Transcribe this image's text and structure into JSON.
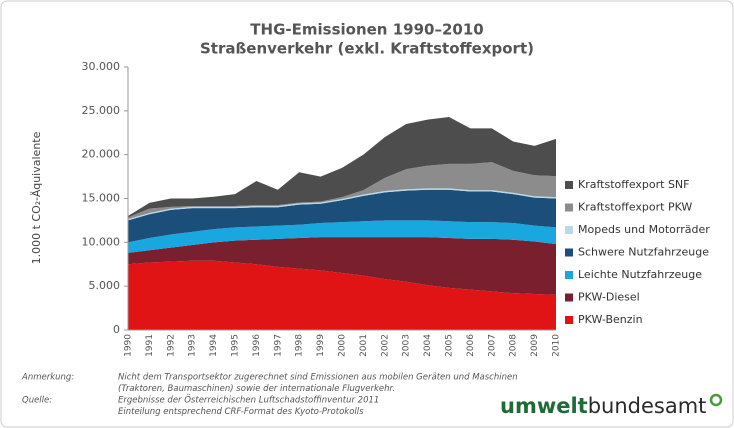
{
  "chart_data": {
    "type": "stacked_area",
    "title": [
      "THG-Emissionen 1990–2010",
      "Straßenverkehr (exkl. Kraftstoffexport)"
    ],
    "y_label": "1.000 t CO₂-Äquivalente",
    "categories": [
      "1990",
      "1991",
      "1992",
      "1993",
      "1994",
      "1995",
      "1996",
      "1997",
      "1998",
      "1999",
      "2000",
      "2001",
      "2002",
      "2003",
      "2004",
      "2005",
      "2006",
      "2007",
      "2008",
      "2009",
      "2010"
    ],
    "ylim": [
      0,
      30000
    ],
    "yticks": [
      0,
      {
        "value": 5000,
        "label": "5.000"
      },
      {
        "value": 10000,
        "label": "10.000"
      },
      {
        "value": 15000,
        "label": "15.000"
      },
      {
        "value": 20000,
        "label": "20.000"
      },
      {
        "value": 25000,
        "label": "25.000"
      },
      {
        "value": 30000,
        "label": "30.000"
      }
    ],
    "grid": false,
    "series": [
      {
        "name": "PKW-Benzin",
        "color": "#e01414",
        "values": [
          7500,
          7700,
          7800,
          7900,
          7900,
          7700,
          7500,
          7200,
          7000,
          6800,
          6500,
          6200,
          5800,
          5500,
          5100,
          4800,
          4600,
          4400,
          4200,
          4100,
          4000
        ]
      },
      {
        "name": "PKW-Diesel",
        "color": "#7a1f2e",
        "values": [
          1300,
          1400,
          1600,
          1800,
          2100,
          2500,
          2800,
          3200,
          3500,
          3800,
          4100,
          4400,
          4800,
          5100,
          5500,
          5700,
          5800,
          6000,
          6100,
          6000,
          5800
        ]
      },
      {
        "name": "Leichte Nutzfahrzeuge",
        "color": "#19a7e0",
        "values": [
          1200,
          1400,
          1500,
          1500,
          1500,
          1500,
          1500,
          1500,
          1500,
          1600,
          1700,
          1800,
          1900,
          1900,
          1900,
          1900,
          1900,
          1900,
          1900,
          1800,
          1900
        ]
      },
      {
        "name": "Schwere Nutzfahrzeuge",
        "color": "#1b4f7a",
        "values": [
          2500,
          2700,
          2800,
          2700,
          2400,
          2200,
          2200,
          2100,
          2300,
          2200,
          2500,
          2900,
          3200,
          3400,
          3500,
          3600,
          3500,
          3500,
          3300,
          3200,
          3300
        ]
      },
      {
        "name": "Mopeds und Motorräder",
        "color": "#b9d9ea",
        "values": [
          150,
          150,
          150,
          150,
          150,
          150,
          150,
          150,
          150,
          150,
          150,
          150,
          150,
          150,
          150,
          150,
          150,
          150,
          150,
          150,
          150
        ]
      },
      {
        "name": "Kraftstoffexport PKW",
        "color": "#8c8c8c",
        "values": [
          200,
          500,
          200,
          100,
          100,
          100,
          100,
          100,
          100,
          100,
          200,
          500,
          1500,
          2300,
          2600,
          2800,
          3000,
          3200,
          2500,
          2400,
          2400
        ]
      },
      {
        "name": "Kraftstoffexport SNF",
        "color": "#4d4d4d",
        "values": [
          150,
          650,
          950,
          850,
          1050,
          1350,
          2750,
          1750,
          3450,
          2850,
          3350,
          4050,
          4650,
          5150,
          5250,
          5350,
          4050,
          3850,
          3350,
          3350,
          4250
        ]
      }
    ],
    "notes": [
      {
        "label": "Anmerkung:",
        "lines": [
          "Nicht dem Transportsektor zugerechnet sind Emissionen aus mobilen Geräten und Maschinen",
          "(Traktoren, Baumaschinen) sowie der internationale Flugverkehr."
        ]
      },
      {
        "label": "Quelle:",
        "lines": [
          "Ergebnisse der Österreichischen Luftschadstoffinventur 2011",
          "Einteilung entsprechend CRF-Format des Kyoto-Protokolls"
        ]
      }
    ],
    "logo": [
      "umwelt",
      "bundesamt"
    ]
  }
}
